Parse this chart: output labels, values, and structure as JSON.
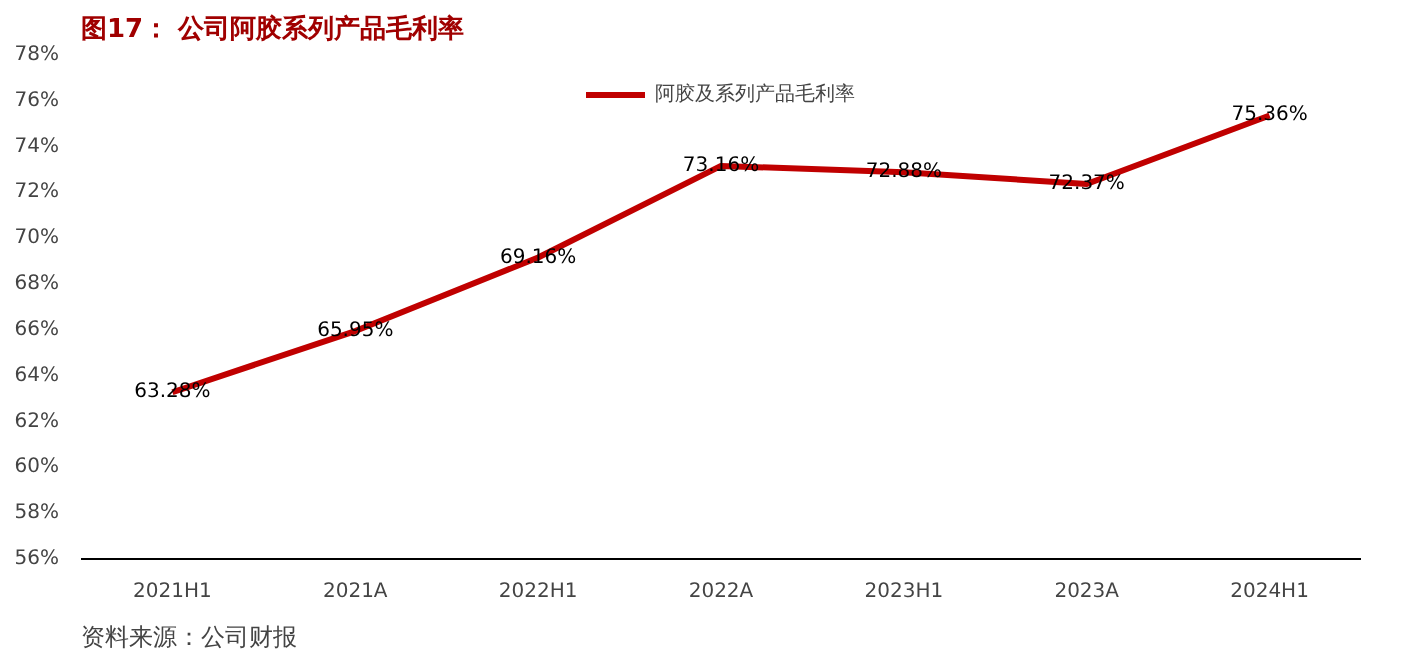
{
  "chart_data": {
    "type": "line",
    "title": "图17：  公司阿胶系列产品毛利率",
    "categories": [
      "2021H1",
      "2021A",
      "2022H1",
      "2022A",
      "2023H1",
      "2023A",
      "2024H1"
    ],
    "series": [
      {
        "name": "阿胶及系列产品毛利率",
        "color": "#c00000",
        "values": [
          63.28,
          65.95,
          69.16,
          73.16,
          72.88,
          72.37,
          75.36
        ],
        "value_labels": [
          "63.28%",
          "65.95%",
          "69.16%",
          "73.16%",
          "72.88%",
          "72.37%",
          "75.36%"
        ]
      }
    ],
    "ylim": [
      56,
      78
    ],
    "yticks": [
      {
        "value": 56,
        "label": "56%"
      },
      {
        "value": 58,
        "label": "58%"
      },
      {
        "value": 60,
        "label": "60%"
      },
      {
        "value": 62,
        "label": "62%"
      },
      {
        "value": 64,
        "label": "64%"
      },
      {
        "value": 66,
        "label": "66%"
      },
      {
        "value": 68,
        "label": "68%"
      },
      {
        "value": 70,
        "label": "70%"
      },
      {
        "value": 72,
        "label": "72%"
      },
      {
        "value": 74,
        "label": "74%"
      },
      {
        "value": 76,
        "label": "76%"
      },
      {
        "value": 78,
        "label": "78%"
      }
    ],
    "grid": false,
    "legend": "top",
    "marker": "none",
    "line_style": "solid",
    "annotations": [
      "资料来源：公司财报"
    ]
  }
}
